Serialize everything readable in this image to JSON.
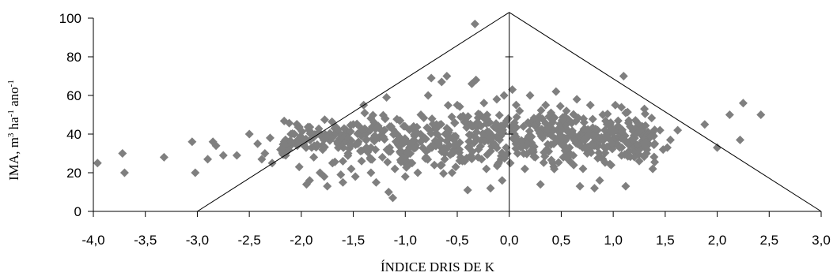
{
  "chart_data": {
    "type": "scatter",
    "title": "",
    "xlabel": "ÍNDICE DRIS DE K",
    "ylabel": "IMA, m³ ha⁻¹ ano⁻¹",
    "xlim": [
      -4.0,
      3.0
    ],
    "ylim": [
      0,
      100
    ],
    "xticks": [
      "-4,0",
      "-3,5",
      "-3,0",
      "-2,5",
      "-2,0",
      "-1,5",
      "-1,0",
      "-0,5",
      "0,0",
      "0,5",
      "1,0",
      "1,5",
      "2,0",
      "2,5",
      "3,0"
    ],
    "yticks": [
      "0",
      "20",
      "40",
      "60",
      "80",
      "100"
    ],
    "grid": false,
    "marker": "diamond",
    "marker_color": "#7f7f7f",
    "boundary_lines": [
      {
        "x": [
          -3.0,
          0.0
        ],
        "y": [
          0,
          103
        ]
      },
      {
        "x": [
          0.0,
          3.0
        ],
        "y": [
          103,
          0
        ]
      }
    ],
    "points": [
      [
        -3.96,
        25
      ],
      [
        -3.72,
        30
      ],
      [
        -3.7,
        20
      ],
      [
        -3.32,
        28
      ],
      [
        -3.05,
        36
      ],
      [
        -3.02,
        20
      ],
      [
        -2.9,
        27
      ],
      [
        -2.85,
        36
      ],
      [
        -2.82,
        34
      ],
      [
        -2.75,
        29
      ],
      [
        -2.62,
        29
      ],
      [
        -2.5,
        40
      ],
      [
        -2.42,
        35
      ],
      [
        -2.38,
        27
      ],
      [
        -2.35,
        30
      ],
      [
        -2.3,
        38
      ],
      [
        -2.28,
        25
      ],
      [
        -2.2,
        32
      ],
      [
        -2.15,
        29
      ],
      [
        -2.1,
        40
      ],
      [
        -2.05,
        36
      ],
      [
        -2.02,
        23
      ],
      [
        -1.98,
        37
      ],
      [
        -1.95,
        14
      ],
      [
        -1.92,
        16
      ],
      [
        -1.9,
        33
      ],
      [
        -1.88,
        28
      ],
      [
        -1.85,
        40
      ],
      [
        -1.82,
        20
      ],
      [
        -1.8,
        34
      ],
      [
        -1.78,
        18
      ],
      [
        -1.75,
        13
      ],
      [
        -1.72,
        38
      ],
      [
        -1.7,
        25
      ],
      [
        -1.68,
        43
      ],
      [
        -1.65,
        35
      ],
      [
        -1.62,
        19
      ],
      [
        -1.6,
        15
      ],
      [
        -1.58,
        40
      ],
      [
        -1.55,
        30
      ],
      [
        -1.52,
        22
      ],
      [
        -1.5,
        45
      ],
      [
        -1.48,
        18
      ],
      [
        -1.45,
        36
      ],
      [
        -1.42,
        26
      ],
      [
        -1.4,
        55
      ],
      [
        -1.38,
        40
      ],
      [
        -1.35,
        32
      ],
      [
        -1.33,
        20
      ],
      [
        -1.3,
        46
      ],
      [
        -1.28,
        15
      ],
      [
        -1.25,
        38
      ],
      [
        -1.22,
        28
      ],
      [
        -1.2,
        42
      ],
      [
        -1.18,
        59
      ],
      [
        -1.16,
        10
      ],
      [
        -1.15,
        33
      ],
      [
        -1.12,
        7
      ],
      [
        -1.1,
        22
      ],
      [
        -1.08,
        40
      ],
      [
        -1.05,
        47
      ],
      [
        -1.02,
        30
      ],
      [
        -1.0,
        18
      ],
      [
        -0.98,
        36
      ],
      [
        -0.95,
        25
      ],
      [
        -0.92,
        44
      ],
      [
        -0.9,
        33
      ],
      [
        -0.88,
        20
      ],
      [
        -0.85,
        50
      ],
      [
        -0.82,
        38
      ],
      [
        -0.8,
        28
      ],
      [
        -0.78,
        60
      ],
      [
        -0.75,
        69
      ],
      [
        -0.72,
        24
      ],
      [
        -0.7,
        45
      ],
      [
        -0.68,
        35
      ],
      [
        -0.65,
        67
      ],
      [
        -0.62,
        30
      ],
      [
        -0.6,
        70
      ],
      [
        -0.58,
        42
      ],
      [
        -0.55,
        20
      ],
      [
        -0.52,
        38
      ],
      [
        -0.5,
        55
      ],
      [
        -0.48,
        32
      ],
      [
        -0.45,
        26
      ],
      [
        -0.42,
        48
      ],
      [
        -0.4,
        11
      ],
      [
        -0.38,
        36
      ],
      [
        -0.36,
        66
      ],
      [
        -0.35,
        44
      ],
      [
        -0.33,
        97
      ],
      [
        -0.32,
        68
      ],
      [
        -0.3,
        28
      ],
      [
        -0.28,
        50
      ],
      [
        -0.25,
        38
      ],
      [
        -0.22,
        22
      ],
      [
        -0.2,
        46
      ],
      [
        -0.18,
        12
      ],
      [
        -0.15,
        35
      ],
      [
        -0.12,
        58
      ],
      [
        -0.1,
        42
      ],
      [
        -0.08,
        27
      ],
      [
        -0.05,
        60
      ],
      [
        -0.03,
        33
      ],
      [
        -0.01,
        48
      ],
      [
        0.01,
        25
      ],
      [
        0.03,
        63
      ],
      [
        0.05,
        40
      ],
      [
        0.08,
        30
      ],
      [
        0.1,
        52
      ],
      [
        0.12,
        36
      ],
      [
        0.15,
        22
      ],
      [
        0.18,
        46
      ],
      [
        0.2,
        60
      ],
      [
        0.22,
        34
      ],
      [
        0.25,
        28
      ],
      [
        0.28,
        42
      ],
      [
        0.3,
        14
      ],
      [
        0.32,
        38
      ],
      [
        0.35,
        55
      ],
      [
        0.38,
        31
      ],
      [
        0.4,
        48
      ],
      [
        0.42,
        25
      ],
      [
        0.45,
        62
      ],
      [
        0.48,
        36
      ],
      [
        0.5,
        44
      ],
      [
        0.52,
        28
      ],
      [
        0.55,
        52
      ],
      [
        0.58,
        33
      ],
      [
        0.6,
        40
      ],
      [
        0.62,
        24
      ],
      [
        0.65,
        58
      ],
      [
        0.68,
        13
      ],
      [
        0.7,
        37
      ],
      [
        0.72,
        46
      ],
      [
        0.75,
        30
      ],
      [
        0.78,
        55
      ],
      [
        0.8,
        35
      ],
      [
        0.82,
        12
      ],
      [
        0.85,
        42
      ],
      [
        0.87,
        16
      ],
      [
        0.88,
        28
      ],
      [
        0.9,
        50
      ],
      [
        0.92,
        38
      ],
      [
        0.95,
        45
      ],
      [
        0.98,
        24
      ],
      [
        1.0,
        34
      ],
      [
        1.02,
        55
      ],
      [
        1.05,
        41
      ],
      [
        1.08,
        29
      ],
      [
        1.1,
        70
      ],
      [
        1.12,
        13
      ],
      [
        1.15,
        47
      ],
      [
        1.18,
        36
      ],
      [
        1.2,
        31
      ],
      [
        1.22,
        40
      ],
      [
        1.25,
        26
      ],
      [
        1.28,
        44
      ],
      [
        1.3,
        53
      ],
      [
        1.32,
        30
      ],
      [
        1.35,
        38
      ],
      [
        1.38,
        22
      ],
      [
        1.4,
        35
      ],
      [
        1.45,
        42
      ],
      [
        1.48,
        32
      ],
      [
        1.52,
        33
      ],
      [
        1.55,
        37
      ],
      [
        1.62,
        42
      ],
      [
        1.88,
        45
      ],
      [
        2.0,
        33
      ],
      [
        2.12,
        50
      ],
      [
        2.22,
        37
      ],
      [
        2.25,
        56
      ],
      [
        2.42,
        50
      ]
    ],
    "cloud": {
      "x_range": [
        -2.2,
        1.4
      ],
      "y_center": 38
    }
  }
}
